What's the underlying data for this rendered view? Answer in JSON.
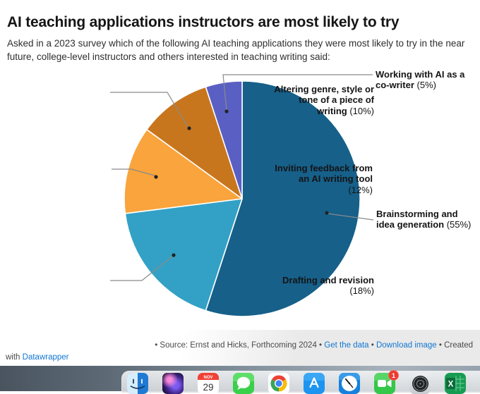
{
  "header": {
    "title": "AI teaching applications instructors are most likely to try",
    "subtitle": "Asked in a 2023 survey which of the following AI teaching applications they were most likely to try in the near future, college-level instructors and others interested in teaching writing said:"
  },
  "chart_data": {
    "type": "pie",
    "title": "AI teaching applications instructors are most likely to try",
    "legend": "none (direct labels with leader lines)",
    "slices": [
      {
        "label": "Brainstorming and idea generation",
        "value": 55,
        "pct_text": "(55%)",
        "color": "#16608a",
        "label_lines": [
          "Brainstorming and",
          "idea generation (55%)"
        ]
      },
      {
        "label": "Drafting and revision",
        "value": 18,
        "pct_text": "(18%)",
        "color": "#33a1c5",
        "label_lines": [
          "Drafting and revision",
          "(18%)"
        ]
      },
      {
        "label": "Inviting feedback from an AI writing tool",
        "value": 12,
        "pct_text": "(12%)",
        "color": "#f9a43c",
        "label_lines": [
          "Inviting feedback from",
          "an AI writing tool",
          "(12%)"
        ]
      },
      {
        "label": "Altering genre, style or tone of a piece of writing",
        "value": 10,
        "pct_text": "(10%)",
        "color": "#c8761e",
        "label_lines": [
          "Altering genre, style or",
          "tone of a piece of",
          "writing (10%)"
        ]
      },
      {
        "label": "Working with AI as a co-writer",
        "value": 5,
        "pct_text": "(5%)",
        "color": "#5a60c3",
        "label_lines": [
          "Working with AI as a",
          "co-writer (5%)"
        ]
      }
    ]
  },
  "footer": {
    "line1_parts": [
      {
        "text": "• Source: Ernst and Hicks, Forthcoming 2024 • ",
        "link": false,
        "name": "source-text"
      },
      {
        "text": "Get the data",
        "link": true,
        "name": "get-the-data-link"
      },
      {
        "text": " • ",
        "link": false,
        "name": "separator"
      },
      {
        "text": "Download image",
        "link": true,
        "name": "download-image-link"
      },
      {
        "text": " • Created",
        "link": false,
        "name": "created-text"
      }
    ],
    "line2_parts": [
      {
        "text": "with ",
        "link": false,
        "name": "with-text"
      },
      {
        "text": "Datawrapper",
        "link": true,
        "name": "datawrapper-link"
      }
    ]
  },
  "dock": {
    "items": [
      {
        "name": "finder"
      },
      {
        "name": "siri"
      },
      {
        "name": "calendar",
        "month": "NOV",
        "day": "29"
      },
      {
        "name": "messages"
      },
      {
        "name": "chrome"
      },
      {
        "name": "app-store"
      },
      {
        "name": "clock"
      },
      {
        "name": "facetime",
        "badge": "1"
      },
      {
        "name": "system-settings"
      },
      {
        "name": "excel",
        "letter": "X"
      }
    ]
  }
}
